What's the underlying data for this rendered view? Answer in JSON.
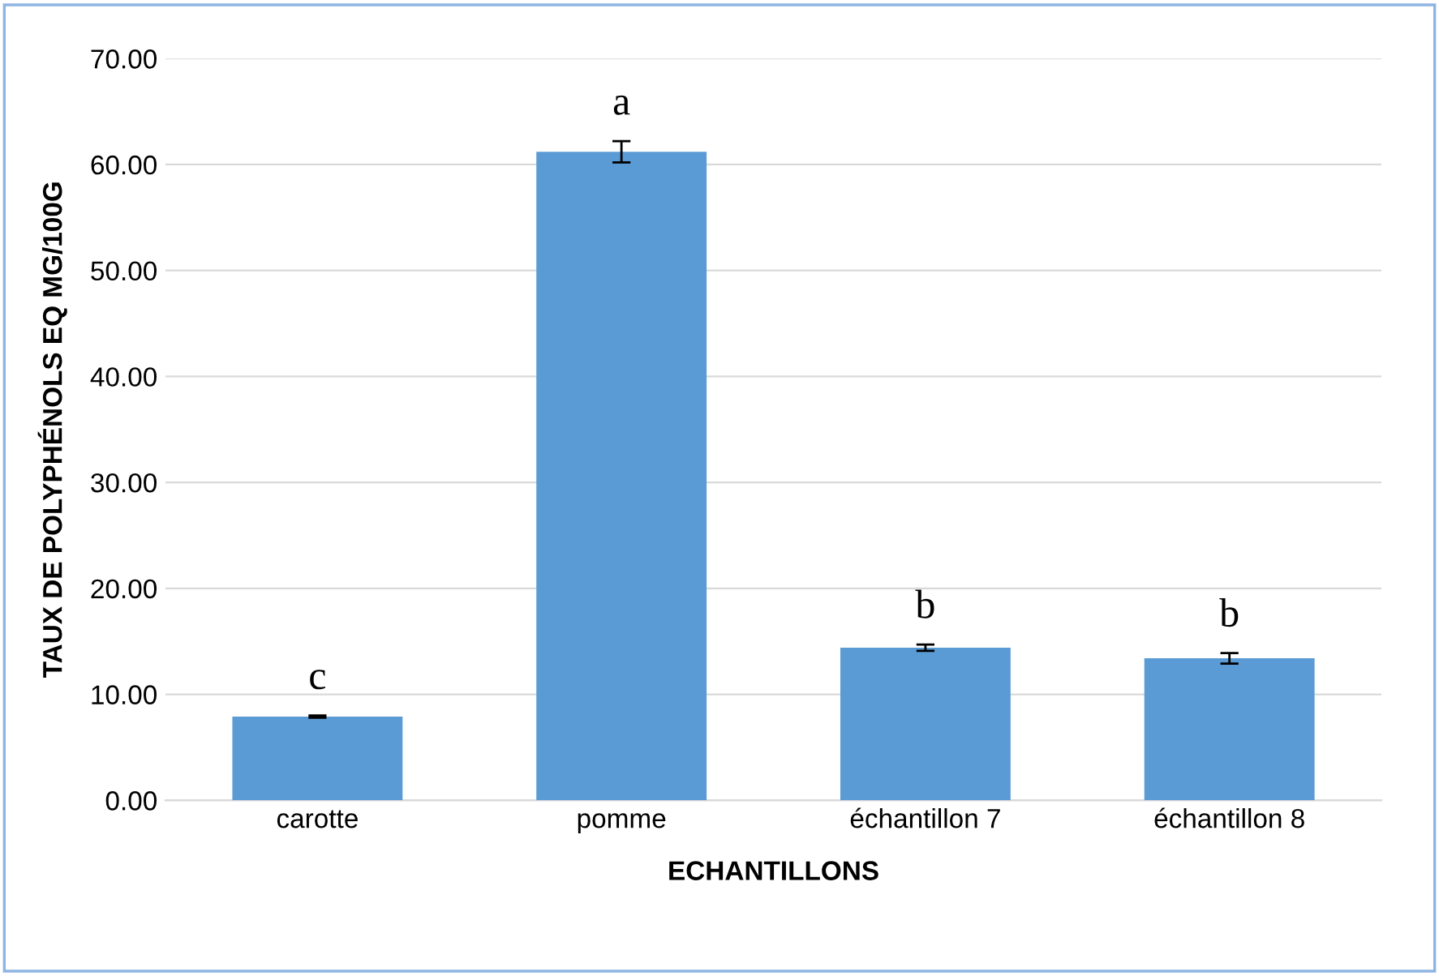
{
  "chart_data": {
    "type": "bar",
    "xlabel": "ECHANTILLONS",
    "ylabel": "TAUX DE POLYPHÉNOLS EQ MG/100G",
    "categories": [
      "carotte",
      "pomme",
      "échantillon 7",
      "échantillon 8"
    ],
    "values": [
      7.9,
      61.2,
      14.4,
      13.4
    ],
    "errors": [
      0.1,
      1.0,
      0.3,
      0.5
    ],
    "color": "#5b9bd5",
    "ylim": [
      0,
      70
    ],
    "yticks": [
      {
        "value": 0,
        "label": "0.00"
      },
      {
        "value": 10,
        "label": "10.00"
      },
      {
        "value": 20,
        "label": "20.00"
      },
      {
        "value": 30,
        "label": "30.00"
      },
      {
        "value": 40,
        "label": "40.00"
      },
      {
        "value": 50,
        "label": "50.00"
      },
      {
        "value": 60,
        "label": "60.00"
      },
      {
        "value": 70,
        "label": "70.00"
      }
    ],
    "grid": "y",
    "annotations": [
      {
        "text": "c",
        "x": "carotte",
        "y": 7.9
      },
      {
        "text": "a",
        "x": "pomme",
        "y": 61.2
      },
      {
        "text": "b",
        "x": "échantillon 7",
        "y": 14.4
      },
      {
        "text": "b",
        "x": "échantillon 8",
        "y": 13.4
      }
    ]
  }
}
